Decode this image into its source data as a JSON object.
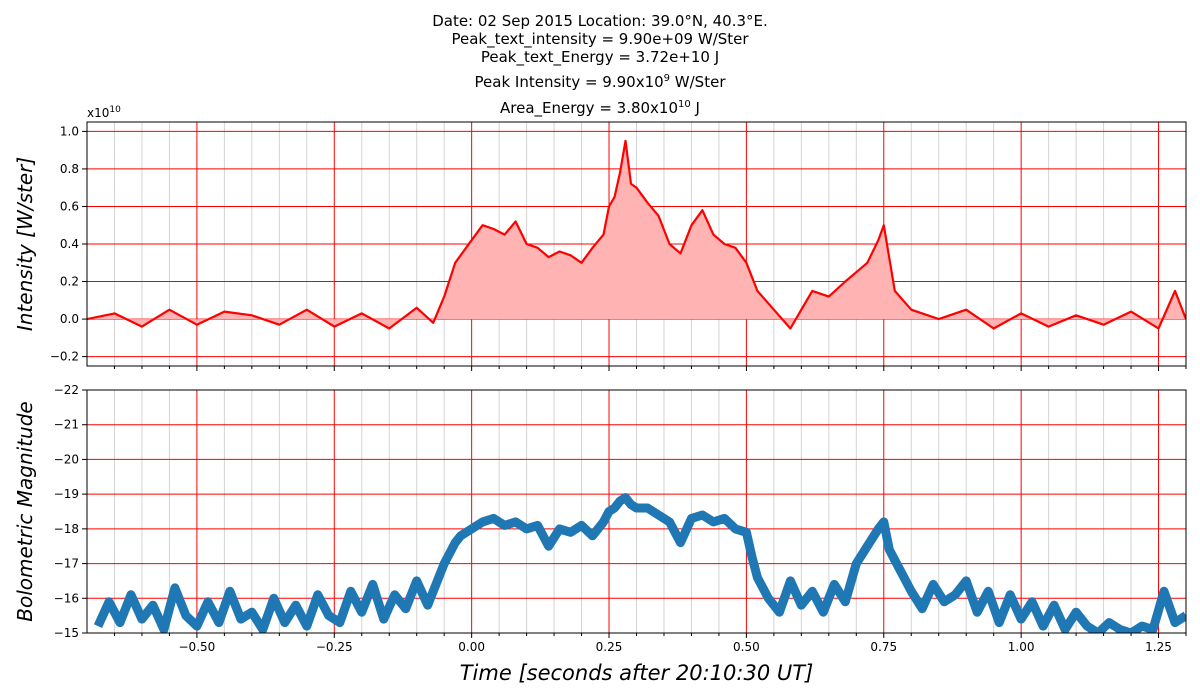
{
  "figure": {
    "title_line1": "Date: 02 Sep 2015      Location: 39.0°N, 40.3°E.",
    "title_line2": "Peak_text_intensity = 9.90e+09 W/Ster",
    "title_line3": "Peak_text_Energy = 3.72e+10 J",
    "title_line4_pre": "Peak Intensity = 9.90x10",
    "title_line4_sup": "9",
    "title_line4_post": " W/Ster",
    "title_line5_pre": "Area_Energy = 3.80x10",
    "title_line5_sup": "10",
    "title_line5_post": " J"
  },
  "colors": {
    "intensity_line": "#ff0000",
    "intensity_fill": "#ffb3b3",
    "magnitude_line": "#1f77b4",
    "grid_major": "#ff0000",
    "grid_minor": "#d3d3d3"
  },
  "chart_data": [
    {
      "type": "area",
      "ylabel": "Intensity [W/ster]",
      "offset_text_base": "x10",
      "offset_text_exp": "10",
      "xlim": [
        -0.7,
        1.3
      ],
      "ylim": [
        -0.25,
        1.05
      ],
      "yticks": [
        -0.2,
        0.0,
        0.2,
        0.4,
        0.6,
        0.8,
        1.0
      ],
      "ytick_labels": [
        "−0.2",
        "0.0",
        "0.2",
        "0.4",
        "0.6",
        "0.8",
        "1.0"
      ],
      "grid": true,
      "series": [
        {
          "x": [
            -0.7,
            -0.65,
            -0.6,
            -0.55,
            -0.5,
            -0.45,
            -0.4,
            -0.35,
            -0.3,
            -0.25,
            -0.2,
            -0.15,
            -0.1,
            -0.07,
            -0.05,
            -0.03,
            0.0,
            0.02,
            0.04,
            0.06,
            0.08,
            0.1,
            0.12,
            0.14,
            0.16,
            0.18,
            0.2,
            0.22,
            0.24,
            0.25,
            0.26,
            0.27,
            0.28,
            0.29,
            0.3,
            0.32,
            0.34,
            0.36,
            0.38,
            0.4,
            0.42,
            0.44,
            0.46,
            0.48,
            0.5,
            0.52,
            0.55,
            0.58,
            0.6,
            0.62,
            0.65,
            0.68,
            0.7,
            0.72,
            0.74,
            0.75,
            0.77,
            0.8,
            0.85,
            0.9,
            0.95,
            1.0,
            1.05,
            1.1,
            1.15,
            1.2,
            1.25,
            1.28,
            1.3
          ],
          "y": [
            0.0,
            0.03,
            -0.04,
            0.05,
            -0.03,
            0.04,
            0.02,
            -0.03,
            0.05,
            -0.04,
            0.03,
            -0.05,
            0.06,
            -0.02,
            0.12,
            0.3,
            0.42,
            0.5,
            0.48,
            0.45,
            0.52,
            0.4,
            0.38,
            0.33,
            0.36,
            0.34,
            0.3,
            0.38,
            0.45,
            0.6,
            0.65,
            0.78,
            0.95,
            0.72,
            0.7,
            0.62,
            0.55,
            0.4,
            0.35,
            0.5,
            0.58,
            0.45,
            0.4,
            0.38,
            0.3,
            0.15,
            0.05,
            -0.05,
            0.05,
            0.15,
            0.12,
            0.2,
            0.25,
            0.3,
            0.42,
            0.5,
            0.15,
            0.05,
            0.0,
            0.05,
            -0.05,
            0.03,
            -0.04,
            0.02,
            -0.03,
            0.04,
            -0.05,
            0.15,
            0.0
          ]
        }
      ]
    },
    {
      "type": "line",
      "ylabel": "Bolometric Magnitude",
      "xlabel": "Time [seconds after 20:10:30 UT]",
      "xlim": [
        -0.7,
        1.3
      ],
      "ylim": [
        -22,
        -15
      ],
      "yinverted": true,
      "yticks": [
        -22,
        -21,
        -20,
        -19,
        -18,
        -17,
        -16,
        -15
      ],
      "ytick_labels": [
        "−22",
        "−21",
        "−20",
        "−19",
        "−18",
        "−17",
        "−16",
        "−15"
      ],
      "xticks": [
        -0.5,
        -0.25,
        0.0,
        0.25,
        0.5,
        0.75,
        1.0,
        1.25
      ],
      "xtick_labels": [
        "−0.50",
        "−0.25",
        "0.00",
        "0.25",
        "0.50",
        "0.75",
        "1.00",
        "1.25"
      ],
      "grid": true,
      "series": [
        {
          "x": [
            -0.68,
            -0.66,
            -0.64,
            -0.62,
            -0.6,
            -0.58,
            -0.56,
            -0.54,
            -0.52,
            -0.5,
            -0.48,
            -0.46,
            -0.44,
            -0.42,
            -0.4,
            -0.38,
            -0.36,
            -0.34,
            -0.32,
            -0.3,
            -0.28,
            -0.26,
            -0.24,
            -0.22,
            -0.2,
            -0.18,
            -0.16,
            -0.14,
            -0.12,
            -0.1,
            -0.08,
            -0.06,
            -0.05,
            -0.04,
            -0.03,
            -0.02,
            -0.01,
            0.0,
            0.02,
            0.04,
            0.06,
            0.08,
            0.1,
            0.12,
            0.14,
            0.16,
            0.18,
            0.2,
            0.22,
            0.24,
            0.25,
            0.26,
            0.27,
            0.28,
            0.29,
            0.3,
            0.32,
            0.34,
            0.36,
            0.38,
            0.4,
            0.42,
            0.44,
            0.46,
            0.48,
            0.5,
            0.51,
            0.52,
            0.54,
            0.56,
            0.58,
            0.6,
            0.62,
            0.64,
            0.66,
            0.68,
            0.7,
            0.72,
            0.74,
            0.75,
            0.76,
            0.78,
            0.8,
            0.82,
            0.84,
            0.86,
            0.88,
            0.9,
            0.92,
            0.94,
            0.96,
            0.98,
            1.0,
            1.02,
            1.04,
            1.06,
            1.08,
            1.1,
            1.12,
            1.14,
            1.16,
            1.18,
            1.2,
            1.22,
            1.24,
            1.26,
            1.28,
            1.3
          ],
          "y": [
            -15.2,
            -15.9,
            -15.3,
            -16.1,
            -15.4,
            -15.8,
            -15.1,
            -16.3,
            -15.5,
            -15.2,
            -15.9,
            -15.3,
            -16.2,
            -15.4,
            -15.6,
            -15.1,
            -16.0,
            -15.3,
            -15.8,
            -15.2,
            -16.1,
            -15.5,
            -15.3,
            -16.2,
            -15.6,
            -16.4,
            -15.4,
            -16.1,
            -15.7,
            -16.5,
            -15.8,
            -16.6,
            -17.0,
            -17.3,
            -17.6,
            -17.8,
            -17.9,
            -18.0,
            -18.2,
            -18.3,
            -18.1,
            -18.2,
            -18.0,
            -18.1,
            -17.5,
            -18.0,
            -17.9,
            -18.1,
            -17.8,
            -18.2,
            -18.5,
            -18.6,
            -18.8,
            -18.9,
            -18.7,
            -18.6,
            -18.6,
            -18.4,
            -18.2,
            -17.6,
            -18.3,
            -18.4,
            -18.2,
            -18.3,
            -18.0,
            -17.9,
            -17.2,
            -16.6,
            -16.0,
            -15.6,
            -16.5,
            -15.8,
            -16.2,
            -15.6,
            -16.4,
            -15.9,
            -17.0,
            -17.5,
            -18.0,
            -18.2,
            -17.4,
            -16.8,
            -16.2,
            -15.7,
            -16.4,
            -15.9,
            -16.1,
            -16.5,
            -15.6,
            -16.2,
            -15.3,
            -16.1,
            -15.4,
            -15.9,
            -15.2,
            -15.8,
            -15.1,
            -15.6,
            -15.2,
            -15.0,
            -15.3,
            -15.1,
            -15.0,
            -15.2,
            -15.1,
            -16.2,
            -15.3,
            -15.5
          ]
        }
      ]
    }
  ]
}
